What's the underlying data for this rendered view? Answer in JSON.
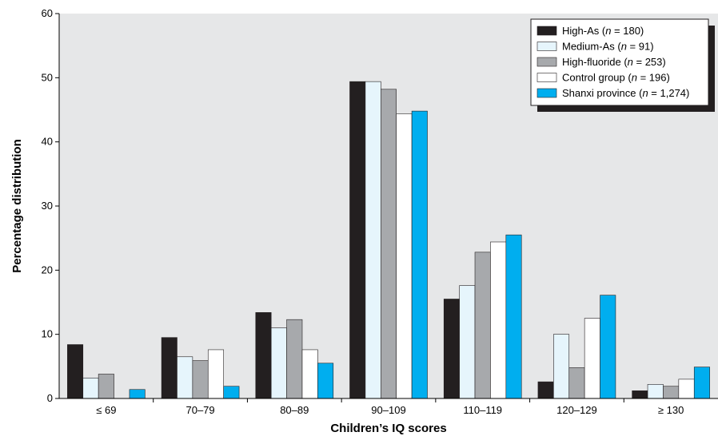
{
  "chart_data": {
    "type": "bar",
    "title": "",
    "xlabel": "Children’s IQ scores",
    "ylabel": "Percentage distribution",
    "ylim": [
      0,
      60
    ],
    "yticks": [
      "0",
      "10",
      "20",
      "30",
      "40",
      "50",
      "60"
    ],
    "grid": false,
    "legend_position": "top-right",
    "categories": [
      "≤ 69",
      "70–79",
      "80–89",
      "90–109",
      "110–119",
      "120–129",
      "≥ 130"
    ],
    "series": [
      {
        "name": "High-As",
        "n_label": "180",
        "color": "#231f20",
        "values": [
          8.4,
          9.5,
          13.4,
          49.4,
          15.5,
          2.6,
          1.2
        ]
      },
      {
        "name": "Medium-As",
        "n_label": "91",
        "color": "#e6f5fc",
        "values": [
          3.2,
          6.5,
          11.0,
          49.4,
          17.6,
          10.0,
          2.2
        ]
      },
      {
        "name": "High-fluoride",
        "n_label": "253",
        "color": "#a7a9ac",
        "values": [
          3.8,
          5.9,
          12.3,
          48.2,
          22.8,
          4.8,
          1.9
        ]
      },
      {
        "name": "Control group",
        "n_label": "196",
        "color": "#ffffff",
        "values": [
          0,
          7.6,
          7.6,
          44.4,
          24.4,
          12.5,
          3.0
        ]
      },
      {
        "name": "Shanxi province",
        "n_label": "1,274",
        "color": "#00aeef",
        "values": [
          1.4,
          1.9,
          5.5,
          44.8,
          25.5,
          16.1,
          4.9
        ]
      }
    ]
  }
}
